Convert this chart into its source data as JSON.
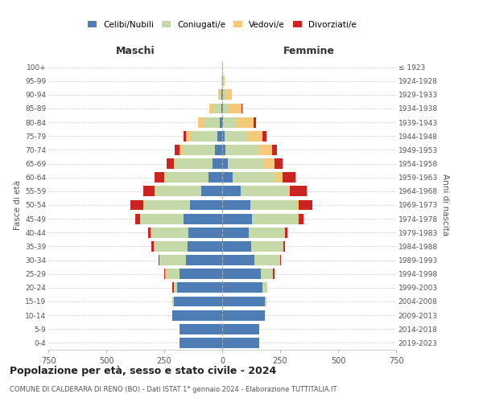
{
  "age_groups": [
    "0-4",
    "5-9",
    "10-14",
    "15-19",
    "20-24",
    "25-29",
    "30-34",
    "35-39",
    "40-44",
    "45-49",
    "50-54",
    "55-59",
    "60-64",
    "65-69",
    "70-74",
    "75-79",
    "80-84",
    "85-89",
    "90-94",
    "95-99",
    "100+"
  ],
  "birth_years": [
    "2019-2023",
    "2014-2018",
    "2009-2013",
    "2004-2008",
    "1999-2003",
    "1994-1998",
    "1989-1993",
    "1984-1988",
    "1979-1983",
    "1974-1978",
    "1969-1973",
    "1964-1968",
    "1959-1963",
    "1954-1958",
    "1949-1953",
    "1944-1948",
    "1939-1943",
    "1934-1938",
    "1929-1933",
    "1924-1928",
    "≤ 1923"
  ],
  "colors": {
    "celibi": "#4e7db5",
    "coniugati": "#c5d9a8",
    "vedovi": "#f5c97a",
    "divorziati": "#cc2222"
  },
  "maschi": {
    "celibi": [
      185,
      185,
      215,
      210,
      195,
      185,
      155,
      150,
      145,
      165,
      140,
      90,
      60,
      40,
      30,
      20,
      10,
      5,
      2,
      1,
      0
    ],
    "coniugati": [
      0,
      0,
      0,
      5,
      15,
      55,
      115,
      145,
      160,
      190,
      195,
      195,
      185,
      160,
      140,
      115,
      65,
      30,
      8,
      2,
      0
    ],
    "vedovi": [
      0,
      0,
      0,
      0,
      0,
      5,
      0,
      0,
      5,
      0,
      5,
      5,
      5,
      10,
      15,
      20,
      30,
      20,
      8,
      2,
      0
    ],
    "divorziati": [
      0,
      0,
      0,
      0,
      5,
      5,
      5,
      10,
      10,
      20,
      55,
      50,
      40,
      30,
      20,
      10,
      0,
      0,
      0,
      0,
      0
    ]
  },
  "femmine": {
    "celibi": [
      160,
      160,
      185,
      185,
      175,
      165,
      140,
      125,
      115,
      130,
      120,
      80,
      45,
      25,
      15,
      10,
      5,
      3,
      2,
      1,
      0
    ],
    "coniugati": [
      0,
      0,
      0,
      5,
      20,
      55,
      110,
      140,
      155,
      195,
      200,
      200,
      185,
      155,
      140,
      100,
      55,
      25,
      8,
      2,
      0
    ],
    "vedovi": [
      0,
      0,
      0,
      0,
      0,
      0,
      0,
      0,
      0,
      5,
      10,
      10,
      30,
      45,
      60,
      65,
      75,
      55,
      30,
      8,
      2
    ],
    "divorziati": [
      0,
      0,
      0,
      0,
      0,
      5,
      5,
      5,
      10,
      20,
      60,
      75,
      55,
      35,
      20,
      15,
      10,
      5,
      0,
      0,
      0
    ]
  },
  "title": "Popolazione per età, sesso e stato civile - 2024",
  "subtitle": "COMUNE DI CALDERARA DI RENO (BO) - Dati ISTAT 1° gennaio 2024 - Elaborazione TUTTITALIA.IT",
  "xlabel_left": "Maschi",
  "xlabel_right": "Femmine",
  "ylabel_left": "Fasce di età",
  "ylabel_right": "Anni di nascita",
  "xlim": 750,
  "legend_labels": [
    "Celibi/Nubili",
    "Coniugati/e",
    "Vedovi/e",
    "Divorziati/e"
  ],
  "background_color": "#ffffff",
  "grid_color": "#cccccc"
}
